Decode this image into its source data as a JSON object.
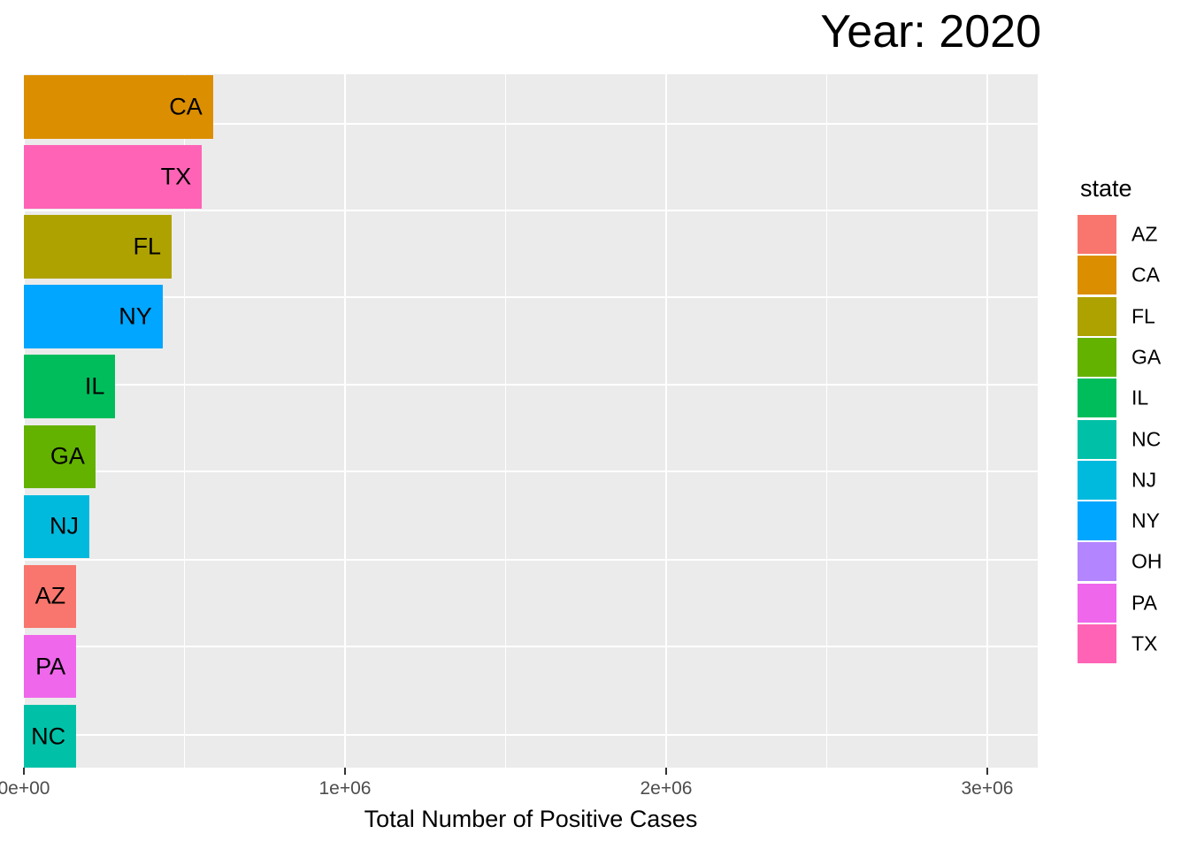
{
  "chart_data": {
    "type": "bar",
    "orientation": "horizontal",
    "title": "Year: 2020",
    "xlabel": "Total Number of Positive Cases",
    "ylabel": "",
    "legend_title": "state",
    "legend_position": "right",
    "grid": true,
    "panel_background": "#EBEBEB",
    "gridline_color": "#ffffff",
    "tick_label_color": "#4D4D4D",
    "xlim": [
      0,
      3160000
    ],
    "x_ticks": [
      {
        "label": "0e+00",
        "value": 0
      },
      {
        "label": "1e+06",
        "value": 1000000
      },
      {
        "label": "2e+06",
        "value": 2000000
      },
      {
        "label": "3e+06",
        "value": 3000000
      }
    ],
    "x_minor_ticks": [
      500000,
      1500000,
      2500000
    ],
    "bars": [
      {
        "state": "CA",
        "value": 589000,
        "color": "#DB8E00"
      },
      {
        "state": "TX",
        "value": 554000,
        "color": "#FF63B6"
      },
      {
        "state": "FL",
        "value": 460000,
        "color": "#AEA200"
      },
      {
        "state": "NY",
        "value": 432000,
        "color": "#00A6FF"
      },
      {
        "state": "IL",
        "value": 285000,
        "color": "#00BD5C"
      },
      {
        "state": "GA",
        "value": 223000,
        "color": "#64B200"
      },
      {
        "state": "NJ",
        "value": 204000,
        "color": "#00BADE"
      },
      {
        "state": "AZ",
        "value": 163000,
        "color": "#F8766D"
      },
      {
        "state": "PA",
        "value": 163000,
        "color": "#EF67EB"
      },
      {
        "state": "NC",
        "value": 163000,
        "color": "#00C1A7"
      }
    ],
    "legend_entries": [
      {
        "label": "AZ",
        "color": "#F8766D"
      },
      {
        "label": "CA",
        "color": "#DB8E00"
      },
      {
        "label": "FL",
        "color": "#AEA200"
      },
      {
        "label": "GA",
        "color": "#64B200"
      },
      {
        "label": "IL",
        "color": "#00BD5C"
      },
      {
        "label": "NC",
        "color": "#00C1A7"
      },
      {
        "label": "NJ",
        "color": "#00BADE"
      },
      {
        "label": "NY",
        "color": "#00A6FF"
      },
      {
        "label": "OH",
        "color": "#B385FF"
      },
      {
        "label": "PA",
        "color": "#EF67EB"
      },
      {
        "label": "TX",
        "color": "#FF63B6"
      }
    ]
  }
}
